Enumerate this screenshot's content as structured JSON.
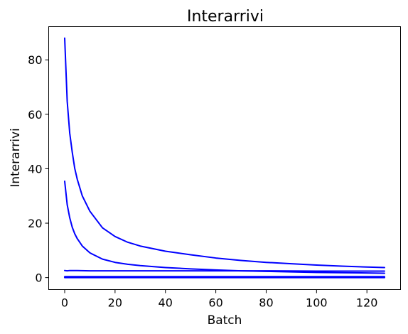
{
  "chart_data": {
    "type": "line",
    "title": "Interarrivi",
    "xlabel": "Batch",
    "ylabel": "Interarrivi",
    "xlim": [
      -6.35,
      133.35
    ],
    "ylim": [
      -4.4,
      92.2
    ],
    "xticks": [
      0,
      20,
      40,
      60,
      80,
      100,
      120
    ],
    "yticks": [
      0,
      20,
      40,
      60,
      80
    ],
    "grid": false,
    "legend": "none",
    "line_color": "#0000ff",
    "series": [
      {
        "x": [
          0,
          1,
          2,
          3,
          4,
          5,
          7,
          10,
          15,
          20,
          25,
          30,
          40,
          50,
          60,
          70,
          80,
          90,
          100,
          110,
          120,
          127
        ],
        "values": [
          88.0,
          64.8,
          53.1,
          46.1,
          40.1,
          36.1,
          30.0,
          24.4,
          18.3,
          15.1,
          13.0,
          11.6,
          9.7,
          8.4,
          7.2,
          6.3,
          5.6,
          5.1,
          4.6,
          4.2,
          3.9,
          3.7
        ]
      },
      {
        "x": [
          0,
          1,
          2,
          3,
          4,
          5,
          7,
          10,
          15,
          20,
          25,
          30,
          40,
          50,
          60,
          70,
          80,
          90,
          100,
          110,
          120,
          127
        ],
        "values": [
          35.4,
          26.8,
          22.0,
          18.5,
          16.1,
          14.3,
          11.6,
          9.1,
          6.8,
          5.6,
          4.9,
          4.4,
          3.7,
          3.2,
          2.8,
          2.5,
          2.3,
          2.1,
          1.9,
          1.8,
          1.7,
          1.6
        ]
      },
      {
        "x": [
          0,
          1,
          2,
          3,
          5,
          10,
          20,
          40,
          60,
          80,
          100,
          127
        ],
        "values": [
          2.6,
          2.5,
          2.6,
          2.6,
          2.6,
          2.5,
          2.5,
          2.5,
          2.5,
          2.5,
          2.4,
          2.4
        ]
      },
      {
        "x": [
          0,
          127
        ],
        "values": [
          0.35,
          0.35
        ]
      },
      {
        "x": [
          0,
          127
        ],
        "values": [
          0.0,
          0.0
        ]
      }
    ]
  }
}
